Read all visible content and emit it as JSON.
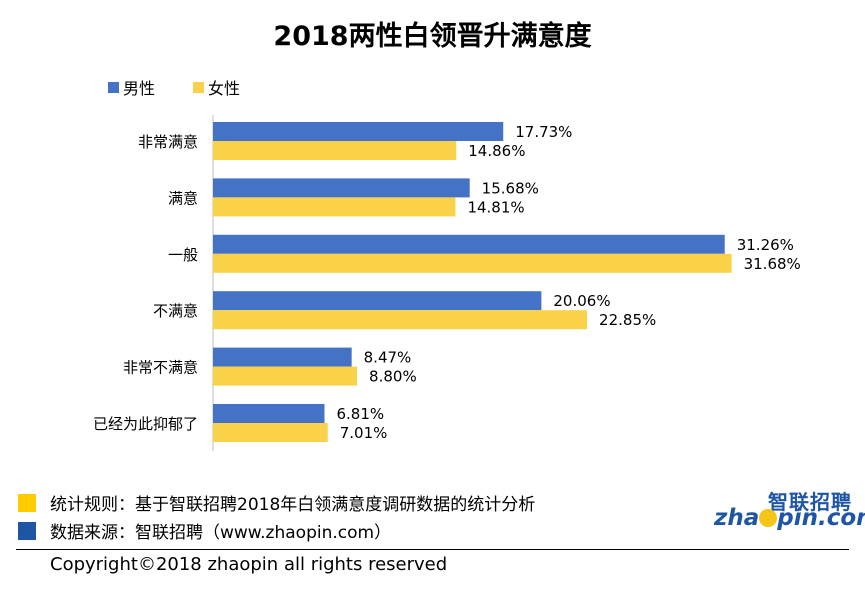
{
  "title": "2018两性白领晋升满意度",
  "colors": {
    "male": "#4472c4",
    "female": "#f9d24a",
    "note_yellow": "#ffcc00",
    "note_blue": "#1e55a5",
    "logo_blue": "#1e55a5",
    "logo_yellow": "#f5c518"
  },
  "legend": {
    "male": "男性",
    "female": "女性"
  },
  "chart_data": {
    "type": "bar",
    "orientation": "horizontal",
    "title": "2018两性白领晋升满意度",
    "categories": [
      "非常满意",
      "满意",
      "一般",
      "不满意",
      "非常不满意",
      "已经为此抑郁了"
    ],
    "series": [
      {
        "name": "男性",
        "values": [
          17.73,
          15.68,
          31.26,
          20.06,
          8.47,
          6.81
        ]
      },
      {
        "name": "女性",
        "values": [
          14.86,
          14.81,
          31.68,
          22.85,
          8.8,
          7.01
        ]
      }
    ],
    "value_unit": "%",
    "xlim": [
      0,
      35
    ],
    "grid": false,
    "legend_position": "top-left",
    "data_labels": true
  },
  "footer": {
    "note1": "统计规则：基于智联招聘2018年白领满意度调研数据的统计分析",
    "note2": "数据来源：智联招聘（www.zhaopin.com）",
    "copyright": "Copyright©2018 zhaopin all rights reserved"
  },
  "logo": {
    "cn": "智联招聘",
    "en_left": "zha",
    "en_right": "pin.com"
  }
}
